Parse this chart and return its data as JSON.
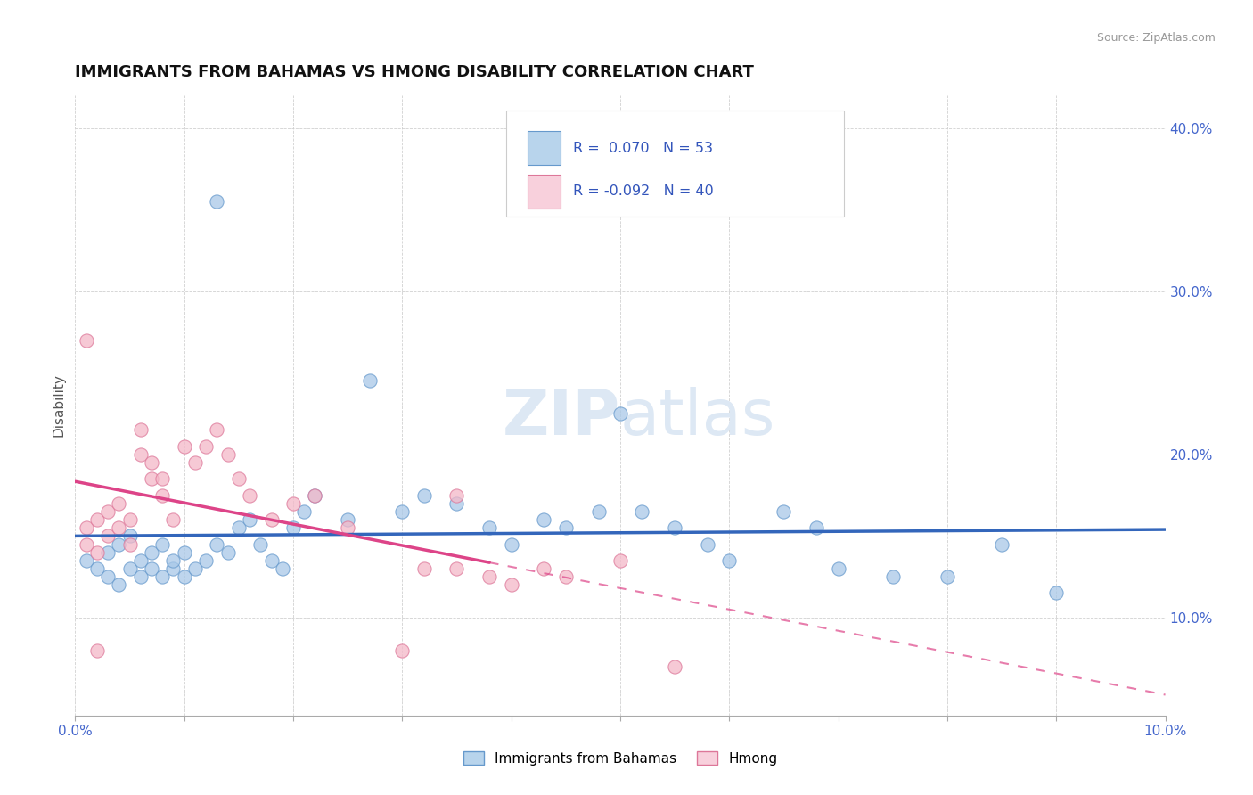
{
  "title": "IMMIGRANTS FROM BAHAMAS VS HMONG DISABILITY CORRELATION CHART",
  "source": "Source: ZipAtlas.com",
  "ylabel": "Disability",
  "xmin": 0.0,
  "xmax": 0.1,
  "ymin": 0.04,
  "ymax": 0.42,
  "yticks": [
    0.1,
    0.2,
    0.3,
    0.4
  ],
  "color_blue": "#a8c8e8",
  "color_blue_edge": "#6699cc",
  "color_pink": "#f4b8c8",
  "color_pink_edge": "#dd7799",
  "color_blue_fill": "#b8d4ec",
  "color_pink_fill": "#f8d0dc",
  "color_trend_blue": "#3366bb",
  "color_trend_pink": "#dd4488",
  "watermark_color": "#dde8f4",
  "bahamas_x": [
    0.001,
    0.002,
    0.003,
    0.003,
    0.004,
    0.004,
    0.005,
    0.005,
    0.006,
    0.006,
    0.007,
    0.007,
    0.008,
    0.008,
    0.009,
    0.009,
    0.01,
    0.01,
    0.011,
    0.012,
    0.013,
    0.014,
    0.015,
    0.016,
    0.017,
    0.018,
    0.019,
    0.02,
    0.021,
    0.022,
    0.025,
    0.027,
    0.03,
    0.032,
    0.035,
    0.038,
    0.04,
    0.043,
    0.045,
    0.048,
    0.05,
    0.052,
    0.055,
    0.058,
    0.06,
    0.065,
    0.068,
    0.07,
    0.075,
    0.08,
    0.085,
    0.09,
    0.013
  ],
  "bahamas_y": [
    0.135,
    0.13,
    0.125,
    0.14,
    0.12,
    0.145,
    0.13,
    0.15,
    0.125,
    0.135,
    0.13,
    0.14,
    0.125,
    0.145,
    0.13,
    0.135,
    0.14,
    0.125,
    0.13,
    0.135,
    0.145,
    0.14,
    0.155,
    0.16,
    0.145,
    0.135,
    0.13,
    0.155,
    0.165,
    0.175,
    0.16,
    0.245,
    0.165,
    0.175,
    0.17,
    0.155,
    0.145,
    0.16,
    0.155,
    0.165,
    0.225,
    0.165,
    0.155,
    0.145,
    0.135,
    0.165,
    0.155,
    0.13,
    0.125,
    0.125,
    0.145,
    0.115,
    0.355
  ],
  "hmong_x": [
    0.001,
    0.001,
    0.002,
    0.002,
    0.003,
    0.003,
    0.004,
    0.004,
    0.005,
    0.005,
    0.006,
    0.006,
    0.007,
    0.007,
    0.008,
    0.008,
    0.009,
    0.01,
    0.011,
    0.012,
    0.013,
    0.014,
    0.015,
    0.016,
    0.018,
    0.02,
    0.022,
    0.025,
    0.03,
    0.032,
    0.035,
    0.035,
    0.038,
    0.04,
    0.043,
    0.045,
    0.05,
    0.055,
    0.001,
    0.002
  ],
  "hmong_y": [
    0.145,
    0.155,
    0.14,
    0.16,
    0.15,
    0.165,
    0.155,
    0.17,
    0.145,
    0.16,
    0.2,
    0.215,
    0.185,
    0.195,
    0.175,
    0.185,
    0.16,
    0.205,
    0.195,
    0.205,
    0.215,
    0.2,
    0.185,
    0.175,
    0.16,
    0.17,
    0.175,
    0.155,
    0.08,
    0.13,
    0.13,
    0.175,
    0.125,
    0.12,
    0.13,
    0.125,
    0.135,
    0.07,
    0.27,
    0.08
  ]
}
